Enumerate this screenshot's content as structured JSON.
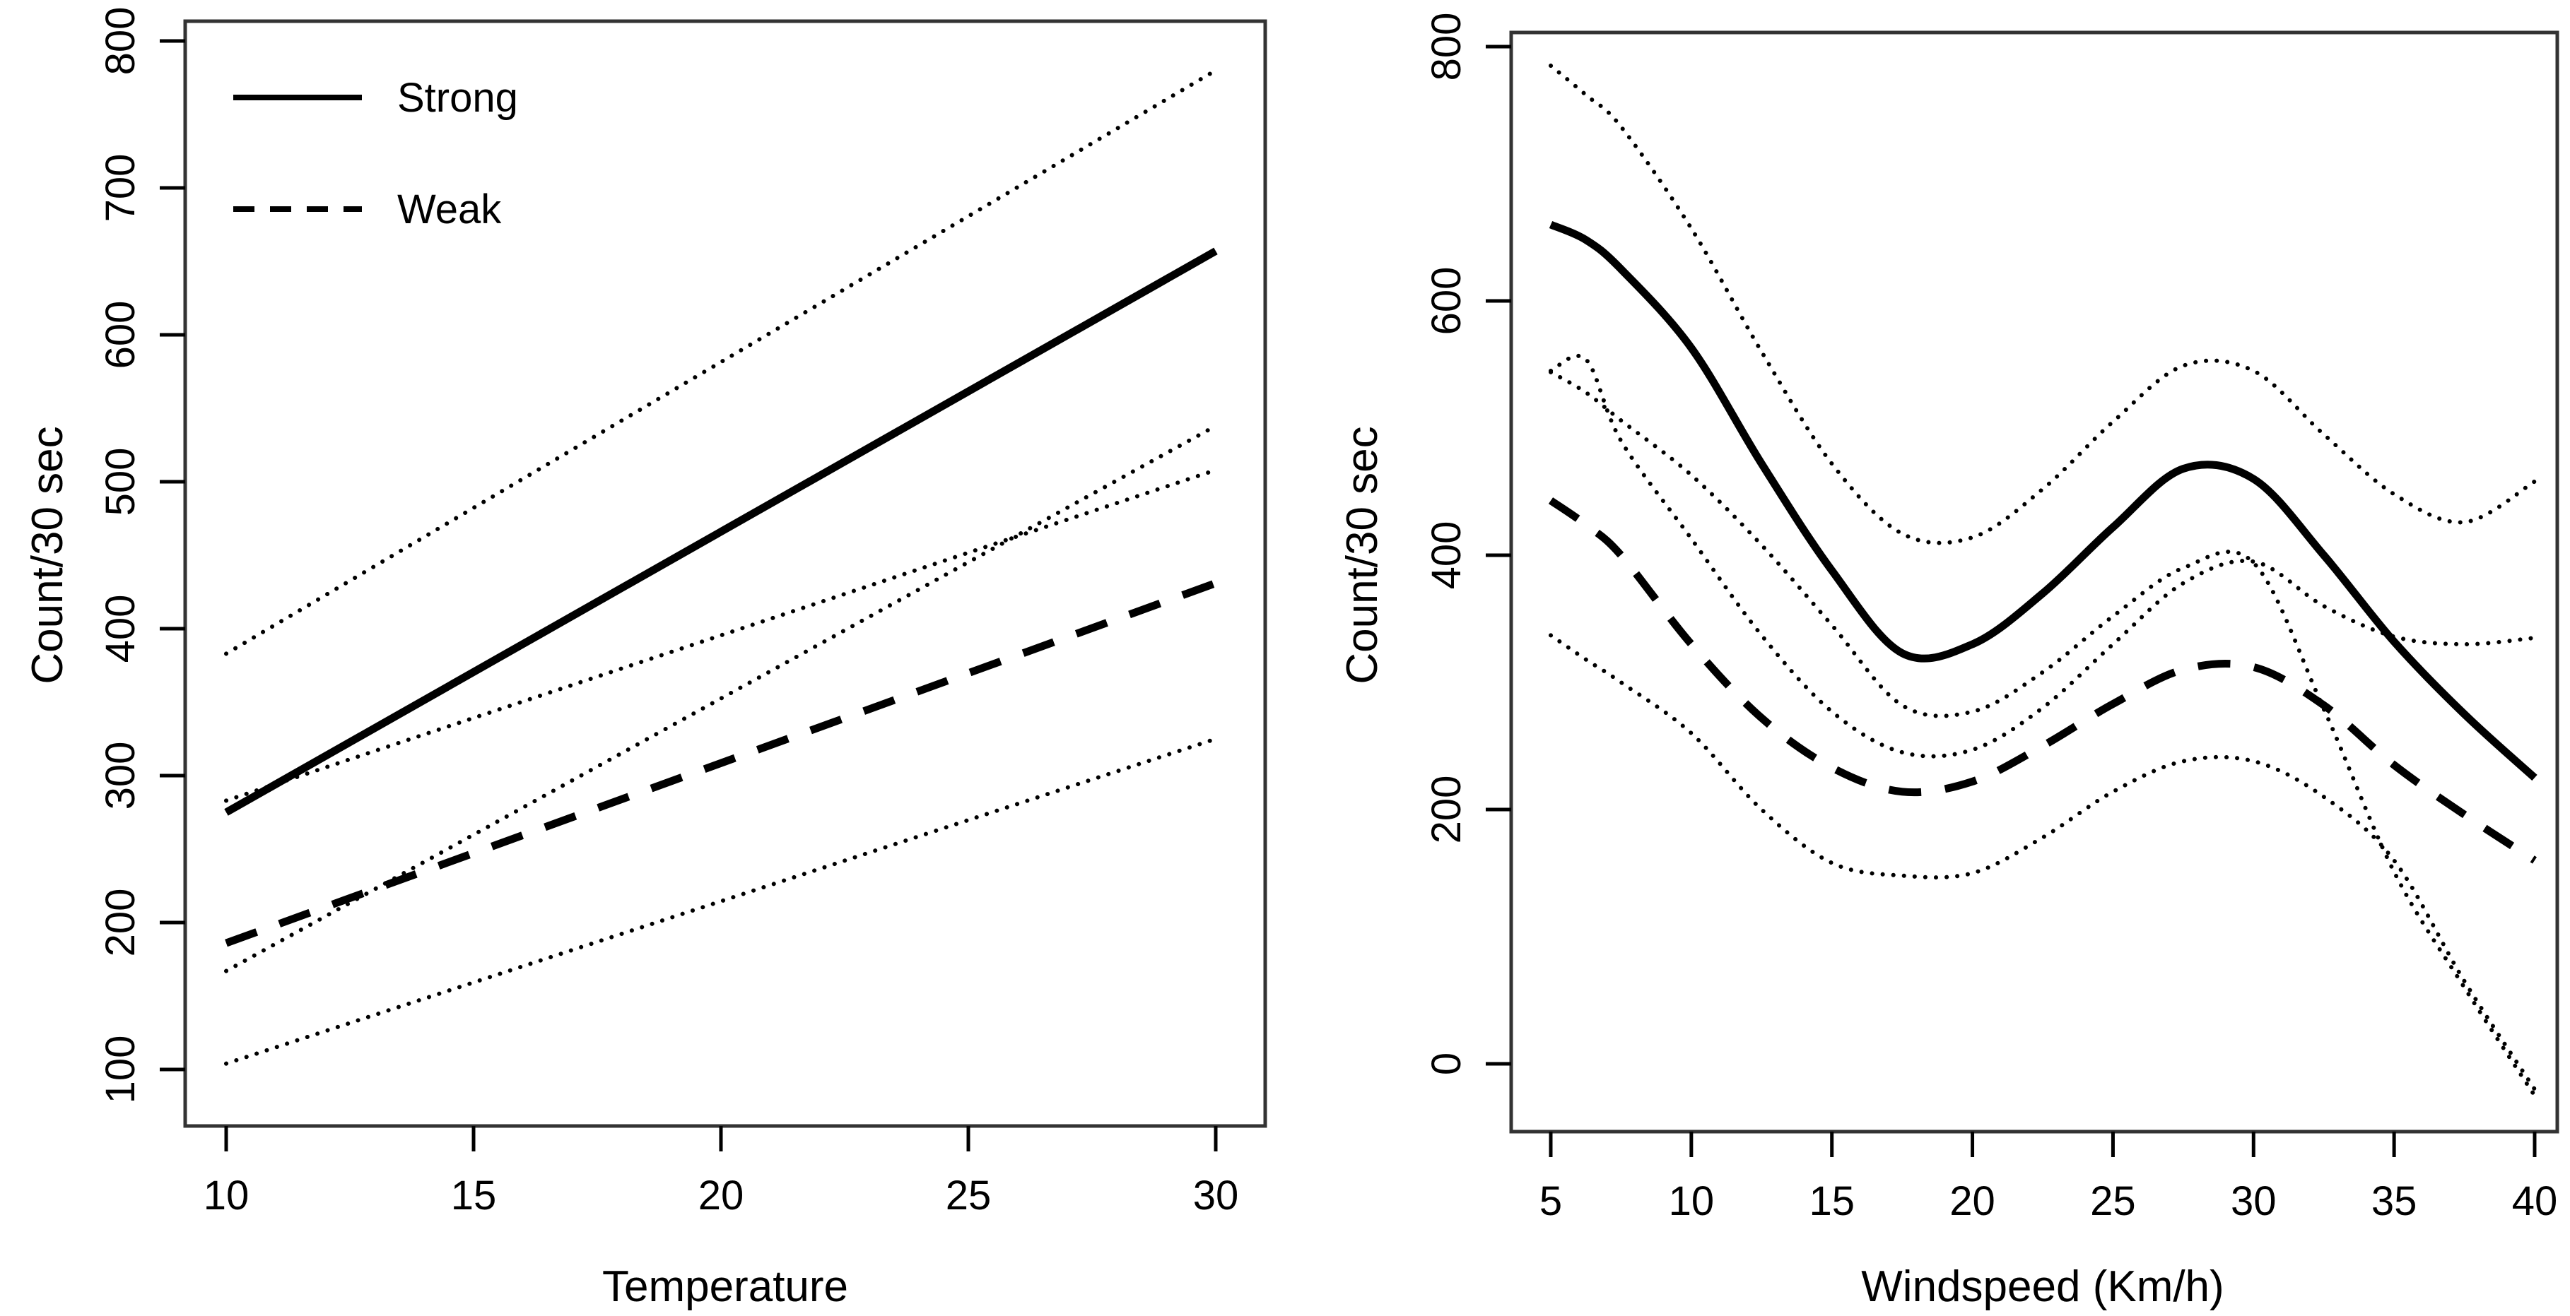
{
  "figure": {
    "background": "#ffffff",
    "line_color": "#000000",
    "frame_color": "#333333"
  },
  "chart_data": [
    {
      "type": "line",
      "panel": "left",
      "xlabel": "Temperature",
      "ylabel": "Count/30 sec",
      "xlim": [
        10,
        30
      ],
      "ylim": [
        100,
        800
      ],
      "xticks": [
        10,
        15,
        20,
        25,
        30
      ],
      "yticks": [
        100,
        200,
        300,
        400,
        500,
        600,
        700,
        800
      ],
      "grid": false,
      "legend_position": "top-left",
      "legend": [
        {
          "label": "Strong",
          "style": "solid"
        },
        {
          "label": "Weak",
          "style": "dashed"
        }
      ],
      "x": [
        10,
        30
      ],
      "series": [
        {
          "name": "Strong",
          "style": "solid",
          "weight": "thick",
          "values": [
            275,
            657
          ]
        },
        {
          "name": "Strong CI upper",
          "style": "dotted",
          "weight": "thin",
          "values": [
            383,
            780
          ]
        },
        {
          "name": "Strong CI lower",
          "style": "dotted",
          "weight": "thin",
          "values": [
            167,
            538
          ]
        },
        {
          "name": "Weak",
          "style": "dashed",
          "weight": "thick",
          "values": [
            186,
            431
          ]
        },
        {
          "name": "Weak CI upper",
          "style": "dotted",
          "weight": "thin",
          "values": [
            283,
            508
          ]
        },
        {
          "name": "Weak CI lower",
          "style": "dotted",
          "weight": "thin",
          "values": [
            104,
            325
          ]
        }
      ]
    },
    {
      "type": "line",
      "panel": "right",
      "xlabel": "Windspeed (Km/h)",
      "ylabel": "Count/30 sec",
      "xlim": [
        5,
        40
      ],
      "ylim": [
        0,
        800
      ],
      "xticks": [
        5,
        10,
        15,
        20,
        25,
        30,
        35,
        40
      ],
      "yticks": [
        0,
        200,
        400,
        600,
        800
      ],
      "grid": false,
      "legend": [],
      "x": [
        5,
        6.25,
        7.5,
        10,
        12.5,
        15,
        17.5,
        20,
        22.5,
        25,
        27.5,
        30,
        32.5,
        35,
        37.5,
        40
      ],
      "series": [
        {
          "name": "Strong",
          "style": "solid",
          "weight": "thick",
          "values": [
            660,
            648,
            625,
            563,
            472,
            388,
            323,
            330,
            370,
            422,
            468,
            460,
            400,
            332,
            275,
            225
          ]
        },
        {
          "name": "Strong CI upper",
          "style": "dotted",
          "weight": "thin",
          "values": [
            785,
            762,
            737,
            657,
            560,
            472,
            417,
            414,
            452,
            505,
            549,
            545,
            495,
            448,
            426,
            458
          ]
        },
        {
          "name": "Strong CI lower",
          "style": "dotted",
          "weight": "thin",
          "values": [
            544,
            528,
            506,
            463,
            408,
            345,
            282,
            277,
            308,
            352,
            390,
            394,
            279,
            151,
            60,
            -25
          ]
        },
        {
          "name": "Weak",
          "style": "dashed",
          "weight": "thick",
          "values": [
            443,
            424,
            400,
            330,
            272,
            233,
            214,
            222,
            250,
            283,
            310,
            312,
            282,
            235,
            196,
            160
          ]
        },
        {
          "name": "Weak CI upper",
          "style": "dotted",
          "weight": "thin",
          "values": [
            545,
            554,
            490,
            413,
            337,
            277,
            245,
            247,
            280,
            330,
            378,
            395,
            360,
            336,
            330,
            335
          ]
        },
        {
          "name": "Weak CI lower",
          "style": "dotted",
          "weight": "thin",
          "values": [
            337,
            318,
            300,
            260,
            200,
            158,
            148,
            150,
            178,
            214,
            238,
            238,
            210,
            160,
            65,
            -20
          ]
        }
      ]
    }
  ]
}
